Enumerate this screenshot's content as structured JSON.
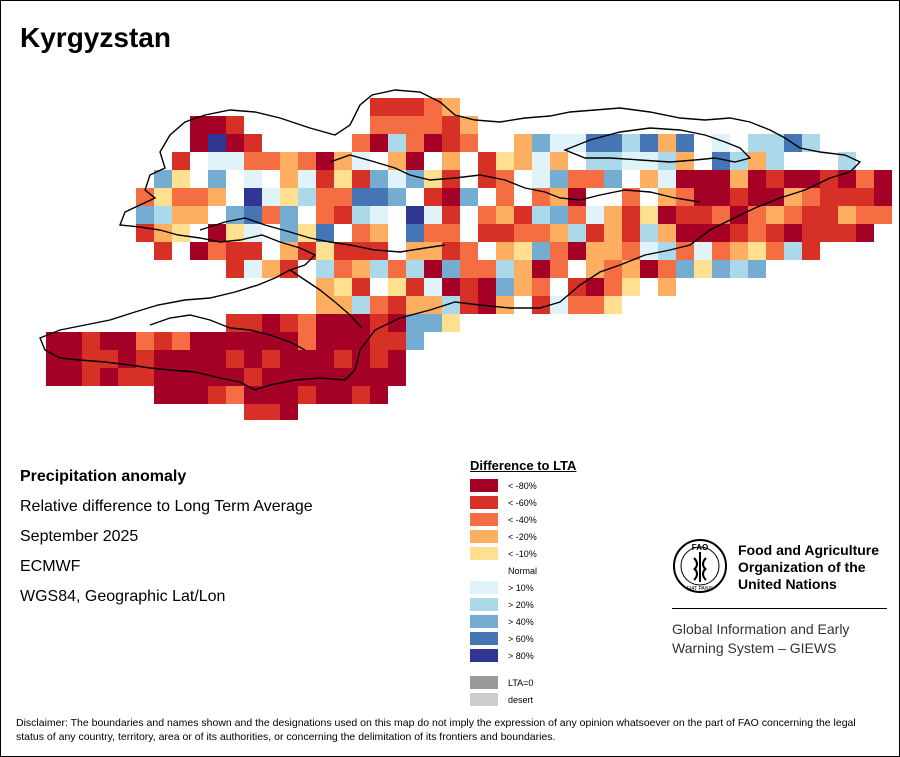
{
  "title": "Kyrgyzstan",
  "info": {
    "heading": "Precipitation anomaly",
    "line1": "Relative difference to Long Term Average",
    "line2": "September 2025",
    "line3": "ECMWF",
    "line4": "WGS84, Geographic Lat/Lon"
  },
  "legend": {
    "title": "Difference to LTA",
    "items": [
      {
        "label": "< -80%",
        "color": "#a50026"
      },
      {
        "label": "< -60%",
        "color": "#d73027"
      },
      {
        "label": "< -40%",
        "color": "#f46d43"
      },
      {
        "label": "< -20%",
        "color": "#fdae61"
      },
      {
        "label": "< -10%",
        "color": "#fee090"
      },
      {
        "label": "Normal",
        "color": "#ffffff"
      },
      {
        "label": "> 10%",
        "color": "#e0f3f8"
      },
      {
        "label": "> 20%",
        "color": "#abd9e9"
      },
      {
        "label": "> 40%",
        "color": "#74add1"
      },
      {
        "label": "> 60%",
        "color": "#4575b4"
      },
      {
        "label": "> 80%",
        "color": "#313695"
      }
    ],
    "extra": [
      {
        "label": "LTA=0",
        "color": "#999999"
      },
      {
        "label": "desert",
        "color": "#cccccc"
      }
    ]
  },
  "fao": {
    "org_name": "Food and Agriculture Organization of the United Nations",
    "emblem_letters": "FAO",
    "emblem_motto": "FIAT PANIS",
    "giews": "Global Information and Early Warning System – GIEWS"
  },
  "disclaimer": "Disclaimer: The boundaries and names shown and the designations used on this map do not imply the expression of any opinion whatsoever on the part of FAO concerning the legal status of any country, territory, area or of its authorities, or concerning the delimitation of its frontiers and boundaries.",
  "map": {
    "cell_rows": [
      [
        0,
        "0000000000000000000000"
      ],
      [
        1,
        "00000000003300000000000000000000000"
      ],
      [
        2,
        "0000000000000066000000000000000000000"
      ],
      [
        3,
        "000000011AA1100000000000000000000000"
      ],
      [
        4,
        "000000331A1000000000000002200000000000000000000"
      ],
      [
        5,
        "0000111111111100000000000000000000000000000000000"
      ],
      [
        6,
        "00000233322200000000000000000000000000000000000000"
      ],
      [
        7,
        "00000222228000000000000000000000000000000000000000"
      ],
      [
        8,
        "000002111111000000000000000000000000000000000000000"
      ],
      [
        9,
        "00011111111100000000000000000000000000000000000000"
      ],
      [
        10,
        "0000001211200000000000000000000000000000000000000"
      ],
      [
        11,
        "00000001111000000000000000000000000000000000000"
      ],
      [
        12,
        "0000000001110000000000000000000000000000000"
      ],
      [
        13,
        "000000000000000000000000000000000000"
      ],
      [
        14,
        "0000000000000000000000000000000"
      ],
      [
        15,
        "000000000000000000000000000"
      ],
      [
        16,
        "00000000000000000000000"
      ],
      [
        17,
        "0000000000000000"
      ]
    ]
  }
}
